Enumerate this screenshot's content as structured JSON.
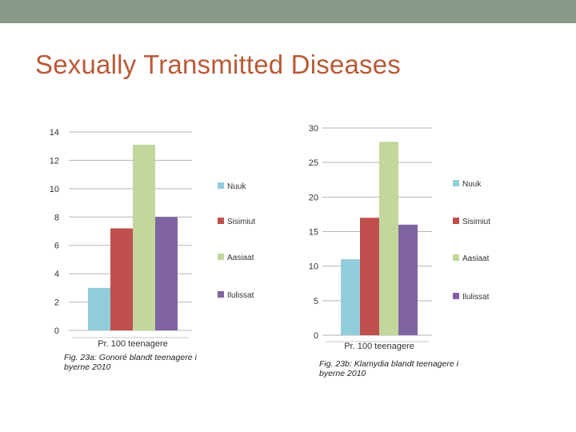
{
  "slide": {
    "title": "Sexually Transmitted Diseases",
    "band_color": "#8a9a8a"
  },
  "chart_data": [
    {
      "type": "bar",
      "title": "",
      "caption_line1": "Fig. 23a: Gonoré blandt teenagere i",
      "caption_line2": "byerne 2010",
      "categories": [
        "Pr. 100 teenagere"
      ],
      "series": [
        {
          "name": "Nuuk",
          "values": [
            3
          ],
          "color": "#92cddc"
        },
        {
          "name": "Sisimiut",
          "values": [
            7.2
          ],
          "color": "#c0504d"
        },
        {
          "name": "Aasiaat",
          "values": [
            13.1
          ],
          "color": "#c3d69b"
        },
        {
          "name": "Ilulissat",
          "values": [
            8
          ],
          "color": "#8064a2"
        }
      ],
      "ylim": [
        0,
        14
      ],
      "yticks": [
        "0",
        "2",
        "4",
        "6",
        "8",
        "10",
        "12",
        "14"
      ],
      "legend": "right",
      "grid": true
    },
    {
      "type": "bar",
      "title": "",
      "caption_line1": "Fig. 23b: Klamydia blandt teenagere i",
      "caption_line2": "byerne 2010",
      "categories": [
        "Pr. 100 teenagere"
      ],
      "series": [
        {
          "name": "Nuuk",
          "values": [
            11
          ],
          "color": "#92cddc"
        },
        {
          "name": "Sisimiut",
          "values": [
            17
          ],
          "color": "#c0504d"
        },
        {
          "name": "Aasiaat",
          "values": [
            28
          ],
          "color": "#c3d69b"
        },
        {
          "name": "Ilulissat",
          "values": [
            16
          ],
          "color": "#8064a2"
        }
      ],
      "ylim": [
        0,
        30
      ],
      "yticks": [
        "0",
        "5",
        "10",
        "15",
        "20",
        "25",
        "30"
      ],
      "legend": "right",
      "grid": true
    }
  ]
}
